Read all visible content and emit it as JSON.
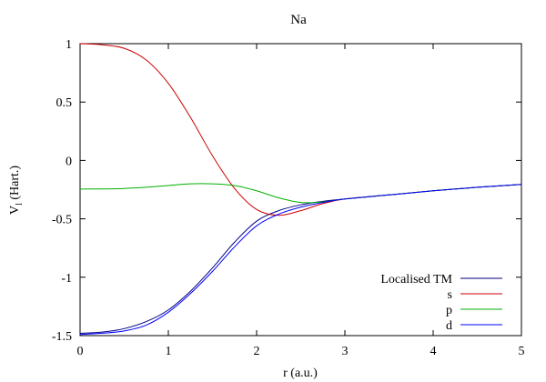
{
  "chart_data": {
    "type": "line",
    "title": "Na",
    "xlabel": "r (a.u.)",
    "ylabel": "V",
    "ylabel_sub": "l",
    "ylabel_tail": " (Hart.)",
    "xlim": [
      0,
      5
    ],
    "ylim": [
      -1.5,
      1
    ],
    "grid": false,
    "legend_position": "bottom-right",
    "x_ticks": [
      0,
      1,
      2,
      3,
      4,
      5
    ],
    "x_tick_labels": [
      "0",
      "1",
      "2",
      "3",
      "4",
      "5"
    ],
    "y_ticks": [
      1,
      0.5,
      0,
      -0.5,
      -1,
      -1.5
    ],
    "y_tick_labels": [
      "1",
      "0.5",
      "0",
      "-0.5",
      "-1",
      "-1.5"
    ],
    "series": [
      {
        "name": "Localised TM",
        "color": "#000080",
        "x": [
          0,
          0.25,
          0.5,
          0.75,
          1.0,
          1.25,
          1.5,
          1.75,
          2.0,
          2.25,
          2.5,
          2.75,
          3.0,
          3.5,
          4.0,
          4.5,
          5.0
        ],
        "y": [
          -1.48,
          -1.47,
          -1.44,
          -1.38,
          -1.28,
          -1.12,
          -0.92,
          -0.7,
          -0.52,
          -0.43,
          -0.38,
          -0.35,
          -0.33,
          -0.295,
          -0.26,
          -0.23,
          -0.205
        ]
      },
      {
        "name": "s",
        "color": "#cc0000",
        "x": [
          0,
          0.25,
          0.5,
          0.75,
          1.0,
          1.25,
          1.5,
          1.75,
          2.0,
          2.25,
          2.5,
          2.75,
          3.0,
          3.5,
          4.0,
          4.5,
          5.0
        ],
        "y": [
          1.0,
          0.99,
          0.96,
          0.86,
          0.66,
          0.37,
          0.04,
          -0.24,
          -0.42,
          -0.47,
          -0.43,
          -0.37,
          -0.33,
          -0.295,
          -0.26,
          -0.23,
          -0.205
        ]
      },
      {
        "name": "p",
        "color": "#00b000",
        "x": [
          0,
          0.25,
          0.5,
          0.75,
          1.0,
          1.25,
          1.5,
          1.75,
          2.0,
          2.25,
          2.5,
          2.75,
          3.0,
          3.5,
          4.0,
          4.5,
          5.0
        ],
        "y": [
          -0.245,
          -0.244,
          -0.24,
          -0.23,
          -0.215,
          -0.2,
          -0.2,
          -0.215,
          -0.26,
          -0.32,
          -0.36,
          -0.355,
          -0.33,
          -0.295,
          -0.26,
          -0.23,
          -0.205
        ]
      },
      {
        "name": "d",
        "color": "#0000ff",
        "x": [
          0,
          0.25,
          0.5,
          0.75,
          1.0,
          1.25,
          1.5,
          1.75,
          2.0,
          2.25,
          2.5,
          2.75,
          3.0,
          3.5,
          4.0,
          4.5,
          5.0
        ],
        "y": [
          -1.49,
          -1.48,
          -1.46,
          -1.41,
          -1.3,
          -1.14,
          -0.95,
          -0.74,
          -0.56,
          -0.46,
          -0.4,
          -0.36,
          -0.33,
          -0.295,
          -0.26,
          -0.23,
          -0.205
        ]
      }
    ]
  }
}
